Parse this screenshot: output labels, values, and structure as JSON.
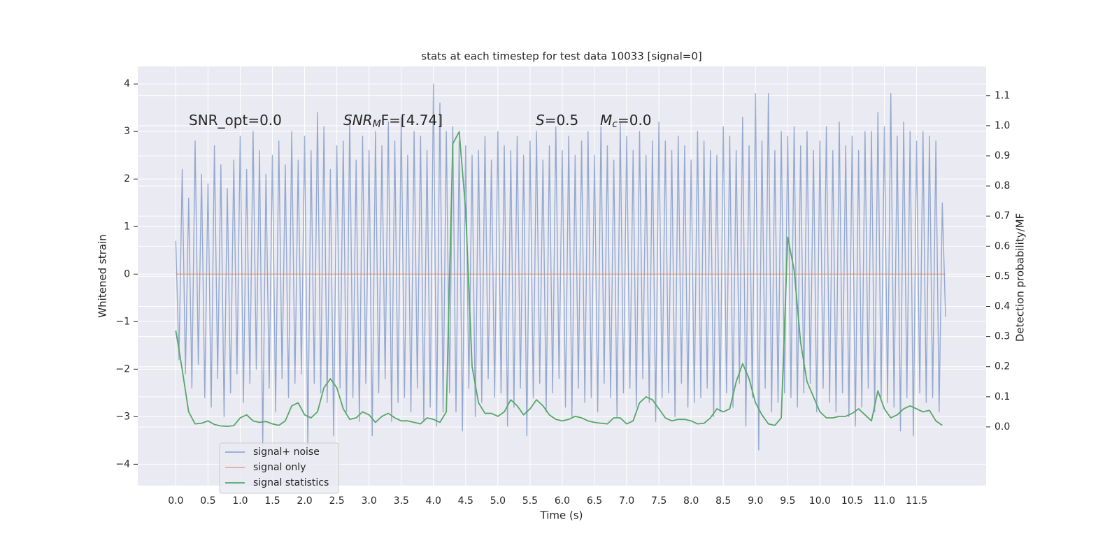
{
  "chart_data": {
    "type": "line",
    "title": "stats at each timestep for test data 10033 [signal=0]",
    "xlabel": "Time (s)",
    "ylabel": "Whitened strain",
    "y2label": "Detection probability/MF",
    "annotations": [
      {
        "text": "SNR_opt=0.0"
      },
      {
        "text": "SNR",
        "sub": "M",
        "tail": "F=[4.74]"
      },
      {
        "text": "S",
        "tail": "=0.5"
      },
      {
        "text": "M",
        "sub": "c",
        "tail": "=0.0"
      }
    ],
    "xlim": [
      -0.59,
      12.58
    ],
    "xticks": [
      {
        "value": 0,
        "label": "0.0"
      },
      0.5,
      {
        "value": 1,
        "label": "1.0"
      },
      1.5,
      {
        "value": 2,
        "label": "2.0"
      },
      2.5,
      {
        "value": 3,
        "label": "3.0"
      },
      3.5,
      {
        "value": 4,
        "label": "4.0"
      },
      4.5,
      {
        "value": 5,
        "label": "5.0"
      },
      5.5,
      {
        "value": 6,
        "label": "6.0"
      },
      6.5,
      {
        "value": 7,
        "label": "7.0"
      },
      7.5,
      {
        "value": 8,
        "label": "8.0"
      },
      8.5,
      {
        "value": 9,
        "label": "9.0"
      },
      9.5,
      {
        "value": 10,
        "label": "10.0"
      },
      10.5,
      {
        "value": 11,
        "label": "11.0"
      },
      11.5
    ],
    "ylim": [
      -4.45,
      4.37
    ],
    "yticks": [
      {
        "value": -4,
        "label": "−4"
      },
      {
        "value": -3,
        "label": "−3"
      },
      {
        "value": -2,
        "label": "−2"
      },
      {
        "value": -1,
        "label": "−1"
      },
      0,
      1,
      2,
      3,
      4
    ],
    "y2lim": [
      -0.195,
      1.197
    ],
    "y2ticks": [
      {
        "value": 0,
        "label": "0.0"
      },
      0.1,
      0.2,
      0.3,
      0.4,
      0.5,
      0.6,
      0.7,
      0.8,
      0.9,
      {
        "value": 1,
        "label": "1.0"
      },
      1.1
    ],
    "grid": true,
    "legend": "lower left",
    "series": [
      {
        "name": "signal+ noise",
        "color": "#4c72b0",
        "x": [
          0,
          0.05,
          0.1,
          0.15,
          0.2,
          0.25,
          0.3,
          0.35,
          0.4,
          0.45,
          0.5,
          0.55,
          0.6,
          0.65,
          0.7,
          0.75,
          0.8,
          0.85,
          0.9,
          0.95,
          1,
          1.05,
          1.1,
          1.15,
          1.2,
          1.25,
          1.3,
          1.35,
          1.4,
          1.45,
          1.5,
          1.55,
          1.6,
          1.65,
          1.7,
          1.75,
          1.8,
          1.85,
          1.9,
          1.95,
          2,
          2.05,
          2.1,
          2.15,
          2.2,
          2.25,
          2.3,
          2.35,
          2.4,
          2.45,
          2.5,
          2.55,
          2.6,
          2.65,
          2.7,
          2.75,
          2.8,
          2.85,
          2.9,
          2.95,
          3,
          3.05,
          3.1,
          3.15,
          3.2,
          3.25,
          3.3,
          3.35,
          3.4,
          3.45,
          3.5,
          3.55,
          3.6,
          3.65,
          3.7,
          3.75,
          3.8,
          3.85,
          3.9,
          3.95,
          4,
          4.05,
          4.1,
          4.15,
          4.2,
          4.25,
          4.3,
          4.35,
          4.4,
          4.45,
          4.5,
          4.55,
          4.6,
          4.65,
          4.7,
          4.75,
          4.8,
          4.85,
          4.9,
          4.95,
          5,
          5.05,
          5.1,
          5.15,
          5.2,
          5.25,
          5.3,
          5.35,
          5.4,
          5.45,
          5.5,
          5.55,
          5.6,
          5.65,
          5.7,
          5.75,
          5.8,
          5.85,
          5.9,
          5.95,
          6,
          6.05,
          6.1,
          6.15,
          6.2,
          6.25,
          6.3,
          6.35,
          6.4,
          6.45,
          6.5,
          6.55,
          6.6,
          6.65,
          6.7,
          6.75,
          6.8,
          6.85,
          6.9,
          6.95,
          7,
          7.05,
          7.1,
          7.15,
          7.2,
          7.25,
          7.3,
          7.35,
          7.4,
          7.45,
          7.5,
          7.55,
          7.6,
          7.65,
          7.7,
          7.75,
          7.8,
          7.85,
          7.9,
          7.95,
          8,
          8.05,
          8.1,
          8.15,
          8.2,
          8.25,
          8.3,
          8.35,
          8.4,
          8.45,
          8.5,
          8.55,
          8.6,
          8.65,
          8.7,
          8.75,
          8.8,
          8.85,
          8.9,
          8.95,
          9,
          9.05,
          9.1,
          9.15,
          9.2,
          9.25,
          9.3,
          9.35,
          9.4,
          9.45,
          9.5,
          9.55,
          9.6,
          9.65,
          9.7,
          9.75,
          9.8,
          9.85,
          9.9,
          9.95,
          10,
          10.05,
          10.1,
          10.15,
          10.2,
          10.25,
          10.3,
          10.35,
          10.4,
          10.45,
          10.5,
          10.55,
          10.6,
          10.65,
          10.7,
          10.75,
          10.8,
          10.85,
          10.9,
          10.95,
          11,
          11.05,
          11.1,
          11.15,
          11.2,
          11.25,
          11.3,
          11.35,
          11.4,
          11.45,
          11.5,
          11.55,
          11.6,
          11.65,
          11.7,
          11.75,
          11.8,
          11.85,
          11.9,
          11.95
        ],
        "values": [
          0.7,
          -1.8,
          2.2,
          -2.1,
          1.6,
          -2.4,
          2.8,
          -1.9,
          2.1,
          -2.6,
          1.9,
          -2.8,
          2.7,
          -2.2,
          2.3,
          -3.0,
          1.8,
          -2.5,
          2.4,
          -2.1,
          2.9,
          -2.7,
          2.2,
          -2.3,
          3.0,
          -2.0,
          2.6,
          -3.6,
          2.1,
          -2.4,
          2.5,
          -2.9,
          2.8,
          -2.2,
          2.3,
          -2.6,
          3.0,
          -2.3,
          2.4,
          -2.1,
          2.9,
          -3.6,
          2.6,
          -2.3,
          3.4,
          -2.5,
          3.1,
          -2.7,
          2.2,
          -3.4,
          2.7,
          -2.4,
          2.8,
          -2.9,
          3.3,
          -2.6,
          2.4,
          -3.1,
          2.9,
          -2.3,
          2.6,
          -3.4,
          3.0,
          -2.5,
          2.7,
          -2.2,
          3.2,
          -3.1,
          2.8,
          -2.7,
          3.3,
          -2.6,
          2.5,
          -2.9,
          3.0,
          -2.4,
          2.9,
          -3.1,
          2.6,
          -2.8,
          4.0,
          -3.2,
          3.6,
          -2.9,
          3.0,
          -2.5,
          3.1,
          -2.9,
          2.8,
          -3.3,
          2.7,
          -2.4,
          2.5,
          -3.0,
          2.6,
          -2.7,
          2.9,
          -2.2,
          2.4,
          -2.6,
          3.0,
          -2.5,
          2.7,
          -3.2,
          2.6,
          -2.8,
          2.9,
          -2.4,
          2.5,
          -3.4,
          2.8,
          -2.6,
          3.0,
          -2.3,
          2.4,
          -2.9,
          2.7,
          -2.5,
          3.1,
          -2.2,
          2.6,
          -2.8,
          2.9,
          -3.0,
          2.5,
          -2.4,
          2.8,
          -2.7,
          3.0,
          -2.6,
          2.5,
          -2.9,
          3.1,
          -2.3,
          2.7,
          -2.6,
          2.4,
          -3.0,
          3.2,
          -2.5,
          2.9,
          -2.4,
          2.6,
          -2.8,
          3.0,
          -2.2,
          2.5,
          -2.7,
          2.8,
          -3.1,
          3.2,
          -2.6,
          2.8,
          -2.5,
          2.6,
          -3.0,
          2.9,
          -2.3,
          2.7,
          -2.8,
          2.4,
          -2.7,
          3.0,
          -2.6,
          2.8,
          -2.4,
          2.6,
          -3.0,
          2.5,
          -2.9,
          3.1,
          -2.5,
          2.9,
          -2.8,
          2.6,
          -2.3,
          3.3,
          -3.2,
          2.7,
          -2.6,
          3.8,
          -3.7,
          2.8,
          -2.4,
          3.8,
          -2.9,
          2.6,
          -2.7,
          3.0,
          -2.5,
          2.9,
          -2.6,
          3.1,
          -2.8,
          2.7,
          -2.5,
          3.0,
          -2.3,
          2.6,
          -2.9,
          2.8,
          -2.4,
          3.1,
          -2.7,
          2.6,
          -2.9,
          3.2,
          -2.5,
          2.7,
          -3.0,
          2.9,
          -3.2,
          2.6,
          -2.8,
          3.0,
          -2.4,
          3.0,
          -2.9,
          3.4,
          -2.6,
          3.1,
          -2.7,
          3.8,
          -2.8,
          2.9,
          -3.3,
          3.2,
          -2.6,
          3.0,
          -3.4,
          2.8,
          -2.5,
          3.0,
          -2.7,
          2.9,
          -2.6,
          2.8,
          -2.9,
          1.5,
          -0.9
        ]
      },
      {
        "name": "signal only",
        "color": "#dd8452",
        "x": [
          0,
          11.95
        ],
        "values": [
          0,
          0
        ]
      },
      {
        "name": "signal statistics",
        "color": "#55a868",
        "axis": "y2",
        "x": [
          0,
          0.1,
          0.2,
          0.3,
          0.4,
          0.5,
          0.6,
          0.7,
          0.8,
          0.9,
          1,
          1.1,
          1.2,
          1.3,
          1.4,
          1.5,
          1.6,
          1.7,
          1.8,
          1.9,
          2,
          2.1,
          2.2,
          2.3,
          2.4,
          2.5,
          2.6,
          2.7,
          2.8,
          2.9,
          3,
          3.1,
          3.2,
          3.3,
          3.4,
          3.5,
          3.6,
          3.7,
          3.8,
          3.9,
          4,
          4.1,
          4.2,
          4.3,
          4.4,
          4.5,
          4.6,
          4.7,
          4.8,
          4.9,
          5,
          5.1,
          5.2,
          5.3,
          5.4,
          5.5,
          5.6,
          5.7,
          5.8,
          5.9,
          6,
          6.1,
          6.2,
          6.3,
          6.4,
          6.5,
          6.6,
          6.7,
          6.8,
          6.9,
          7,
          7.1,
          7.2,
          7.3,
          7.4,
          7.5,
          7.6,
          7.7,
          7.8,
          7.9,
          8,
          8.1,
          8.2,
          8.3,
          8.4,
          8.5,
          8.6,
          8.7,
          8.8,
          8.9,
          9,
          9.1,
          9.2,
          9.3,
          9.4,
          9.5,
          9.6,
          9.7,
          9.8,
          9.9,
          10,
          10.1,
          10.2,
          10.3,
          10.4,
          10.5,
          10.6,
          10.7,
          10.8,
          10.9,
          11,
          11.1,
          11.2,
          11.3,
          11.4,
          11.5,
          11.6,
          11.7,
          11.8,
          11.9
        ],
        "values": [
          0.32,
          0.19,
          0.05,
          0.01,
          0.012,
          0.02,
          0.008,
          0.003,
          0.002,
          0.004,
          0.03,
          0.04,
          0.02,
          0.015,
          0.018,
          0.01,
          0.005,
          0.02,
          0.07,
          0.08,
          0.04,
          0.03,
          0.05,
          0.13,
          0.16,
          0.13,
          0.06,
          0.025,
          0.03,
          0.05,
          0.04,
          0.015,
          0.035,
          0.045,
          0.03,
          0.02,
          0.02,
          0.015,
          0.01,
          0.03,
          0.025,
          0.015,
          0.05,
          0.94,
          0.98,
          0.72,
          0.2,
          0.08,
          0.045,
          0.045,
          0.035,
          0.05,
          0.09,
          0.07,
          0.04,
          0.06,
          0.09,
          0.07,
          0.04,
          0.025,
          0.02,
          0.025,
          0.035,
          0.03,
          0.02,
          0.015,
          0.012,
          0.01,
          0.03,
          0.03,
          0.01,
          0.02,
          0.08,
          0.1,
          0.09,
          0.06,
          0.03,
          0.02,
          0.025,
          0.025,
          0.02,
          0.01,
          0.012,
          0.03,
          0.06,
          0.05,
          0.06,
          0.15,
          0.21,
          0.16,
          0.08,
          0.04,
          0.01,
          0.005,
          0.03,
          0.63,
          0.52,
          0.28,
          0.15,
          0.1,
          0.05,
          0.03,
          0.03,
          0.035,
          0.035,
          0.045,
          0.06,
          0.04,
          0.02,
          0.12,
          0.06,
          0.03,
          0.04,
          0.06,
          0.07,
          0.06,
          0.05,
          0.055,
          0.02,
          0.005
        ]
      }
    ]
  }
}
